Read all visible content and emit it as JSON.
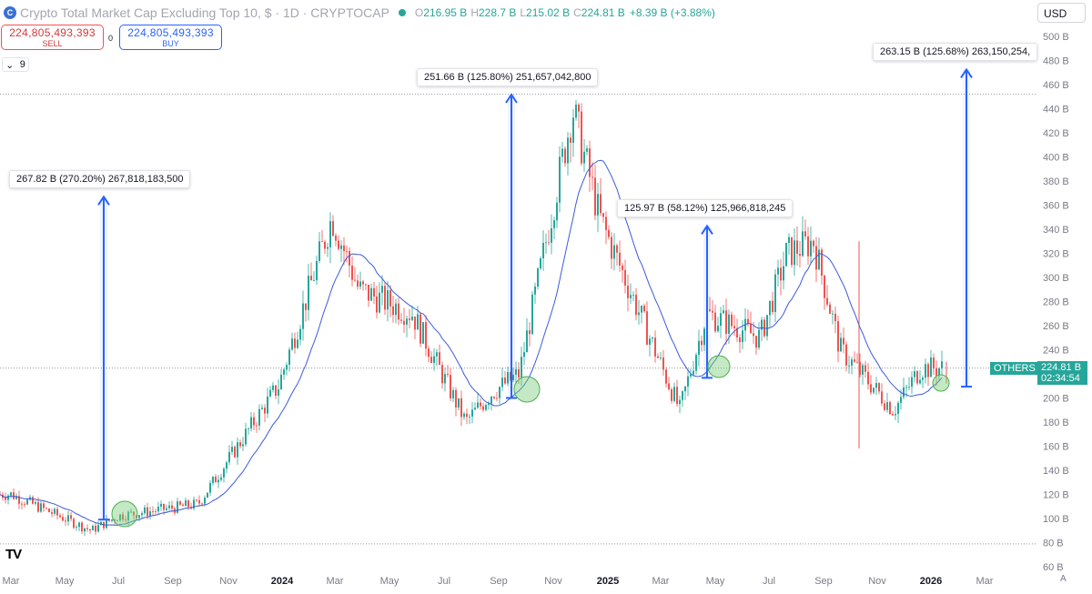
{
  "header": {
    "title": "Crypto Total Market Cap Excluding Top 10, $ · 1D · CRYPTOCAP",
    "logo_text": "C",
    "ohlc": [
      {
        "key": "O",
        "value": "216.95 B"
      },
      {
        "key": "H",
        "value": "228.7 B"
      },
      {
        "key": "L",
        "value": "215.02 B"
      },
      {
        "key": "C",
        "value": "224.81 B"
      }
    ],
    "change": "+8.39 B (+3.88%)"
  },
  "trade": {
    "sell_value": "224,805,493,393",
    "sell_label": "SELL",
    "spread": "0",
    "buy_value": "224,805,493,393",
    "buy_label": "BUY"
  },
  "indicator_count": "9",
  "currency": "USD",
  "tv_logo": "TV",
  "auto_label": "A",
  "last": {
    "symbol": "OTHERS",
    "price": "224.81 B",
    "countdown": "02:34:54"
  },
  "annotations": [
    {
      "text": "267.82 B (270.20%) 267,818,183,500"
    },
    {
      "text": "251.66 B (125.80%) 251,657,042,800"
    },
    {
      "text": "125.97 B (58.12%) 125,966,818,245"
    },
    {
      "text": "263.15 B (125.68%) 263,150,254,"
    }
  ],
  "colors": {
    "up": "#26a69a",
    "down": "#ef5350",
    "ma_line": "#3b5bdb",
    "measure": "#2962ff",
    "circle_fill": "#7ccf7c"
  },
  "axes": {
    "y_ticks": [
      "500 B",
      "480 B",
      "460 B",
      "440 B",
      "420 B",
      "400 B",
      "380 B",
      "360 B",
      "340 B",
      "320 B",
      "300 B",
      "280 B",
      "260 B",
      "240 B",
      "220 B",
      "200 B",
      "180 B",
      "160 B",
      "140 B",
      "120 B",
      "100 B",
      "80 B",
      "60 B"
    ],
    "x_ticks": [
      "Mar",
      "May",
      "Jul",
      "Sep",
      "Nov",
      "2024",
      "Mar",
      "May",
      "Jul",
      "Sep",
      "Nov",
      "2025",
      "Mar",
      "May",
      "Jul",
      "Sep",
      "Nov",
      "2026",
      "Mar"
    ]
  },
  "chart_data": {
    "type": "candlestick",
    "unit": "B",
    "ylim": [
      60,
      505
    ],
    "moving_average": "approx. 50-day",
    "x_range": [
      "2023-03",
      "2026-03"
    ],
    "key_points": [
      {
        "date": "2023-03",
        "value": 120
      },
      {
        "date": "2023-06",
        "value": 90
      },
      {
        "date": "2023-07",
        "value": 102
      },
      {
        "date": "2023-10",
        "value": 112
      },
      {
        "date": "2024-01",
        "value": 210
      },
      {
        "date": "2024-03",
        "value": 350
      },
      {
        "date": "2024-04",
        "value": 290
      },
      {
        "date": "2024-06",
        "value": 270
      },
      {
        "date": "2024-08",
        "value": 180
      },
      {
        "date": "2024-09",
        "value": 205
      },
      {
        "date": "2024-10",
        "value": 220
      },
      {
        "date": "2024-12",
        "value": 440
      },
      {
        "date": "2025-01",
        "value": 350
      },
      {
        "date": "2025-04",
        "value": 190
      },
      {
        "date": "2025-05",
        "value": 270
      },
      {
        "date": "2025-07",
        "value": 250
      },
      {
        "date": "2025-08",
        "value": 320
      },
      {
        "date": "2025-09",
        "value": 330
      },
      {
        "date": "2025-10",
        "value": 240
      },
      {
        "date": "2025-12",
        "value": 190
      },
      {
        "date": "2026-01",
        "value": 224.81
      }
    ],
    "last_close": 224.81,
    "measurements": [
      {
        "label": "267.82 B (270.20%)",
        "from": 99.1,
        "to": 366.9
      },
      {
        "label": "251.66 B (125.80%)",
        "from": 200,
        "to": 451.7
      },
      {
        "label": "125.97 B (58.12%)",
        "from": 216.7,
        "to": 342.7
      },
      {
        "label": "263.15 B (125.68%)",
        "from": 209.4,
        "to": 472.5
      }
    ],
    "horizontal_levels": [
      452,
      224.8,
      79
    ],
    "highlight_circles": [
      "2023-07",
      "2024-09",
      "2025-05",
      "2026-01"
    ]
  }
}
